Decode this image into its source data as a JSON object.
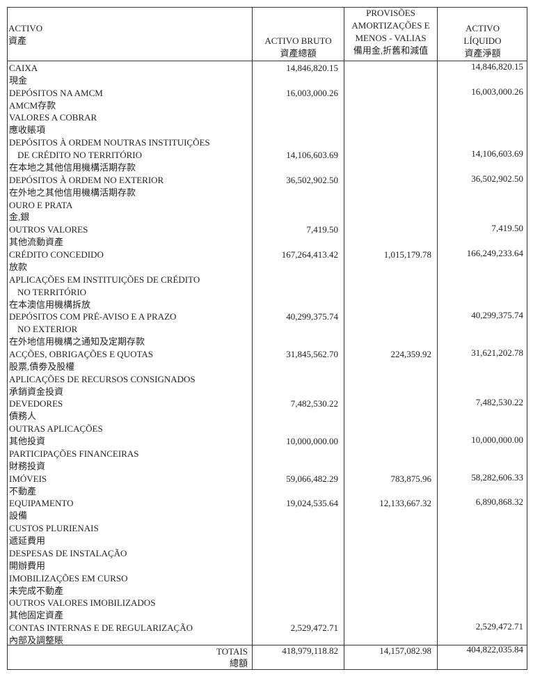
{
  "header": {
    "col0": [
      "ACTIVO",
      "資產"
    ],
    "col1": [
      "ACTIVO BRUTO",
      "資產總額"
    ],
    "col2": [
      "PROVISÕES",
      "AMORTIZAÇÕES E",
      "MENOS - VALIAS",
      "備用金,折舊和減值"
    ],
    "col3": [
      "ACTIVO",
      "LÍQUIDO",
      "資產淨額"
    ]
  },
  "rows": [
    {
      "pt": [
        "CAIXA"
      ],
      "zh": "現金",
      "bruto": "14,846,820.15",
      "prov": "",
      "liquido": "14,846,820.15"
    },
    {
      "pt": [
        "DEPÓSITOS NA AMCM"
      ],
      "zh": "AMCM存款",
      "bruto": "16,003,000.26",
      "prov": "",
      "liquido": "16,003,000.26"
    },
    {
      "pt": [
        "VALORES A COBRAR"
      ],
      "zh": "應收賬項",
      "bruto": "",
      "prov": "",
      "liquido": ""
    },
    {
      "pt": [
        "DEPÓSITOS À ORDEM NOUTRAS INSTITUIÇÕES",
        "DE CRÉDITO NO TERRITÓRIO"
      ],
      "zh": "在本地之其他信用機構活期存款",
      "bruto": "14,106,603.69",
      "prov": "",
      "liquido": "14,106,603.69"
    },
    {
      "pt": [
        "DEPÓSITOS À ORDEM NO EXTERIOR"
      ],
      "zh": "在外地之其他信用機構活期存款",
      "bruto": "36,502,902.50",
      "prov": "",
      "liquido": "36,502,902.50"
    },
    {
      "pt": [
        "OURO E PRATA"
      ],
      "zh": "金,銀",
      "bruto": "",
      "prov": "",
      "liquido": ""
    },
    {
      "pt": [
        "OUTROS VALORES"
      ],
      "zh": "其他流動資產",
      "bruto": "7,419.50",
      "prov": "",
      "liquido": "7,419.50"
    },
    {
      "pt": [
        "CRÉDITO CONCEDIDO"
      ],
      "zh": "放款",
      "bruto": "167,264,413.42",
      "prov": "1,015,179.78",
      "liquido": "166,249,233.64"
    },
    {
      "pt": [
        "APLICAÇÕES EM INSTITUIÇÕES DE CRÉDITO",
        "NO TERRITÓRIO"
      ],
      "zh": "在本澳信用機構拆放",
      "bruto": "",
      "prov": "",
      "liquido": ""
    },
    {
      "pt": [
        "DEPÓSITOS COM PRÉ-AVISO E A PRAZO",
        "NO EXTERIOR"
      ],
      "zh": "在外地信用機構之通知及定期存款",
      "bruto": "40,299,375.74",
      "prov": "",
      "liquido": "40,299,375.74",
      "num_line": 0
    },
    {
      "pt": [
        "ACÇÕES, OBRIGAÇÕES E QUOTAS"
      ],
      "zh": "股票,債劵及股權",
      "bruto": "31,845,562.70",
      "prov": "224,359.92",
      "liquido": "31,621,202.78"
    },
    {
      "pt": [
        "APLICAÇÕES DE RECURSOS CONSIGNADOS"
      ],
      "zh": "承銷資金投資",
      "bruto": "",
      "prov": "",
      "liquido": ""
    },
    {
      "pt": [
        "DEVEDORES"
      ],
      "zh": "債務人",
      "bruto": "7,482,530.22",
      "prov": "",
      "liquido": "7,482,530.22"
    },
    {
      "pt": [
        "OUTRAS APLICAÇÕES"
      ],
      "zh": "其他投資",
      "bruto": "10,000,000.00",
      "prov": "",
      "liquido": "10,000,000.00",
      "num_line": 1
    },
    {
      "pt": [
        "PARTICIPAÇÕES FINANCEIRAS"
      ],
      "zh": "財務投資",
      "bruto": "",
      "prov": "",
      "liquido": ""
    },
    {
      "pt": [
        "IMÓVEIS"
      ],
      "zh": "不動產",
      "bruto": "59,066,482.29",
      "prov": "783,875.96",
      "liquido": "58,282,606.33"
    },
    {
      "pt": [
        "EQUIPAMENTO"
      ],
      "zh": "設備",
      "bruto": "19,024,535.64",
      "prov": "12,133,667.32",
      "liquido": "6,890,868.32"
    },
    {
      "pt": [
        "CUSTOS PLURIENAIS"
      ],
      "zh": "遞延費用",
      "bruto": "",
      "prov": "",
      "liquido": ""
    },
    {
      "pt": [
        "DESPESAS DE INSTALAÇÃO"
      ],
      "zh": "開辦費用",
      "bruto": "",
      "prov": "",
      "liquido": ""
    },
    {
      "pt": [
        "IMOBILIZAÇÕES EM CURSO"
      ],
      "zh": "未完成不動產",
      "bruto": "",
      "prov": "",
      "liquido": ""
    },
    {
      "pt": [
        "OUTROS VALORES IMOBILIZADOS"
      ],
      "zh": "其他固定資產",
      "bruto": "",
      "prov": "",
      "liquido": ""
    },
    {
      "pt": [
        "CONTAS INTERNAS E DE REGULARIZAÇÃO"
      ],
      "zh": "內部及調整賬",
      "bruto": "2,529,472.71",
      "prov": "",
      "liquido": "2,529,472.71"
    }
  ],
  "totals": {
    "label_pt": "TOTAIS",
    "label_zh": "總額",
    "bruto": "418,979,118.82",
    "prov": "14,157,082.98",
    "liquido": "404,822,035.84"
  }
}
